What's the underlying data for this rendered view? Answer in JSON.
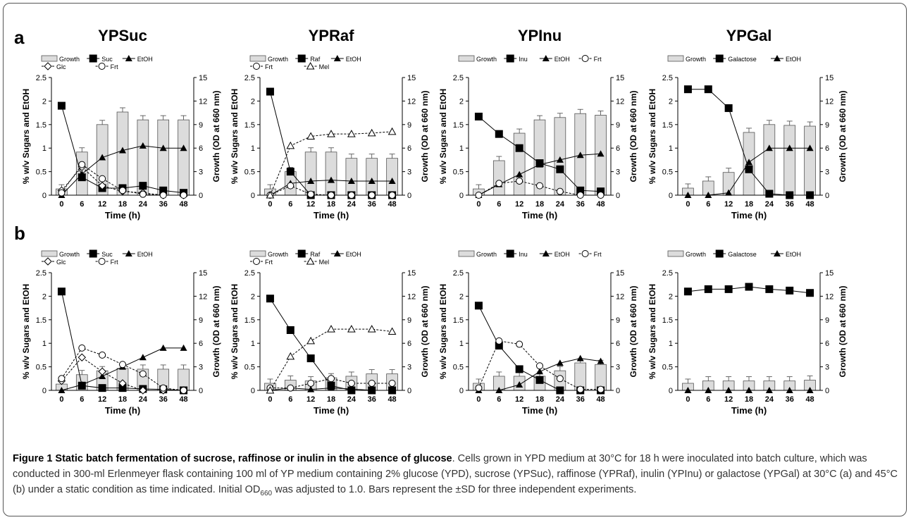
{
  "panels": [
    {
      "letter": "a"
    },
    {
      "letter": "b"
    }
  ],
  "columns": [
    "YPSuc",
    "YPRaf",
    "YPInu",
    "YPGal"
  ],
  "axis": {
    "xlabel": "Time (h)",
    "ylabel_left": "% w/v Sugars and EtOH",
    "ylabel_right": "Growth (OD at 660 nm)",
    "categories": [
      "0",
      "6",
      "12",
      "18",
      "24",
      "36",
      "48"
    ],
    "left_ticks": [
      "0",
      "0.5",
      "1",
      "1.5",
      "2",
      "2.5"
    ],
    "right_ticks": [
      "0",
      "3",
      "6",
      "9",
      "12",
      "15"
    ],
    "ylim_left": [
      0,
      2.5
    ],
    "ylim_right": [
      0,
      15
    ]
  },
  "legends": [
    {
      "row1": [
        "Growth",
        "Suc",
        "EtOH"
      ],
      "row2": [
        "Glc",
        "Frt"
      ]
    },
    {
      "row1": [
        "Growth",
        "Raf",
        "EtOH"
      ],
      "row2": [
        "Frt",
        "Mel"
      ]
    },
    {
      "row1": [
        "Growth",
        "Inu",
        "EtOH",
        "Frt"
      ],
      "row2": []
    },
    {
      "row1": [
        "Growth",
        "Galactose",
        "EtOH"
      ],
      "row2": []
    }
  ],
  "chart_data": [
    {
      "type": "bar+line",
      "panel": "a",
      "title": "YPSuc",
      "growth": [
        0.8,
        5.5,
        9.0,
        10.6,
        9.6,
        9.6,
        9.6
      ],
      "series": [
        {
          "name": "Suc",
          "marker": "filled-square",
          "dash": false,
          "values": [
            1.9,
            0.38,
            0.15,
            0.15,
            0.2,
            0.1,
            0.05
          ]
        },
        {
          "name": "EtOH",
          "marker": "filled-triangle",
          "dash": false,
          "values": [
            0.0,
            0.45,
            0.8,
            0.95,
            1.05,
            1.0,
            1.0
          ]
        },
        {
          "name": "Glc",
          "marker": "open-diamond",
          "dash": true,
          "values": [
            0.1,
            0.6,
            0.2,
            0.08,
            0.05,
            0.0,
            0.0
          ]
        },
        {
          "name": "Frt",
          "marker": "open-circle",
          "dash": true,
          "values": [
            0.05,
            0.65,
            0.35,
            0.1,
            0.02,
            0.0,
            0.0
          ]
        }
      ]
    },
    {
      "type": "bar+line",
      "panel": "a",
      "title": "YPRaf",
      "growth": [
        0.8,
        3.0,
        5.5,
        5.5,
        4.7,
        4.7,
        4.7
      ],
      "series": [
        {
          "name": "Raf",
          "marker": "filled-square",
          "dash": false,
          "values": [
            2.2,
            0.5,
            0.0,
            0.0,
            0.0,
            0.0,
            0.0
          ]
        },
        {
          "name": "EtOH",
          "marker": "filled-triangle",
          "dash": false,
          "values": [
            0.0,
            0.25,
            0.3,
            0.32,
            0.3,
            0.3,
            0.3
          ]
        },
        {
          "name": "Frt",
          "marker": "open-circle",
          "dash": true,
          "values": [
            0.0,
            0.2,
            0.02,
            0.0,
            0.0,
            0.0,
            0.0
          ]
        },
        {
          "name": "Mel",
          "marker": "open-triangle",
          "dash": true,
          "values": [
            0.0,
            1.05,
            1.25,
            1.3,
            1.3,
            1.32,
            1.35
          ]
        }
      ]
    },
    {
      "type": "bar+line",
      "panel": "a",
      "title": "YPInu",
      "growth": [
        0.8,
        4.4,
        7.9,
        9.6,
        9.9,
        10.4,
        10.2
      ],
      "series": [
        {
          "name": "Inu",
          "marker": "filled-square",
          "dash": false,
          "values": [
            1.67,
            1.3,
            1.0,
            0.68,
            0.55,
            0.1,
            0.08
          ]
        },
        {
          "name": "EtOH",
          "marker": "filled-triangle",
          "dash": false,
          "values": [
            0.0,
            0.23,
            0.44,
            0.65,
            0.75,
            0.85,
            0.88
          ]
        },
        {
          "name": "Frt",
          "marker": "open-circle",
          "dash": true,
          "values": [
            0.0,
            0.25,
            0.3,
            0.2,
            0.08,
            0.0,
            0.0
          ]
        }
      ]
    },
    {
      "type": "bar+line",
      "panel": "a",
      "title": "YPGal",
      "growth": [
        0.9,
        1.8,
        2.9,
        8.0,
        9.0,
        8.9,
        8.8
      ],
      "series": [
        {
          "name": "Galactose",
          "marker": "filled-square",
          "dash": false,
          "values": [
            2.25,
            2.25,
            1.85,
            0.55,
            0.03,
            0.0,
            0.0
          ]
        },
        {
          "name": "EtOH",
          "marker": "filled-triangle",
          "dash": false,
          "values": [
            0.0,
            0.0,
            0.05,
            0.7,
            1.0,
            1.0,
            1.0
          ]
        }
      ]
    },
    {
      "type": "bar+line",
      "panel": "b",
      "title": "YPSuc",
      "growth": [
        0.8,
        2.0,
        2.5,
        2.8,
        2.7,
        2.7,
        2.7
      ],
      "series": [
        {
          "name": "Suc",
          "marker": "filled-square",
          "dash": false,
          "values": [
            2.1,
            0.1,
            0.05,
            0.05,
            0.03,
            0.02,
            0.0
          ]
        },
        {
          "name": "EtOH",
          "marker": "filled-triangle",
          "dash": false,
          "values": [
            0.0,
            0.12,
            0.3,
            0.5,
            0.7,
            0.9,
            0.9
          ]
        },
        {
          "name": "Glc",
          "marker": "open-diamond",
          "dash": true,
          "values": [
            0.2,
            0.7,
            0.4,
            0.15,
            0.0,
            0.0,
            0.0
          ]
        },
        {
          "name": "Frt",
          "marker": "open-circle",
          "dash": true,
          "values": [
            0.25,
            0.9,
            0.75,
            0.55,
            0.35,
            0.05,
            0.0
          ]
        }
      ]
    },
    {
      "type": "bar+line",
      "panel": "b",
      "title": "YPRaf",
      "growth": [
        0.9,
        1.3,
        1.2,
        1.6,
        1.8,
        2.1,
        2.1
      ],
      "series": [
        {
          "name": "Raf",
          "marker": "filled-square",
          "dash": false,
          "values": [
            1.95,
            1.28,
            0.68,
            0.1,
            0.0,
            0.0,
            0.0
          ]
        },
        {
          "name": "EtOH",
          "marker": "filled-triangle",
          "dash": false,
          "values": [
            0.0,
            0.05,
            0.02,
            0.05,
            0.03,
            0.0,
            0.0
          ]
        },
        {
          "name": "Frt",
          "marker": "open-circle",
          "dash": true,
          "values": [
            0.05,
            0.05,
            0.15,
            0.25,
            0.15,
            0.15,
            0.15
          ]
        },
        {
          "name": "Mel",
          "marker": "open-triangle",
          "dash": true,
          "values": [
            0.0,
            0.72,
            1.05,
            1.3,
            1.3,
            1.3,
            1.25
          ]
        }
      ]
    },
    {
      "type": "bar+line",
      "panel": "b",
      "title": "YPInu",
      "growth": [
        0.9,
        1.8,
        1.8,
        1.8,
        2.5,
        3.5,
        3.3
      ],
      "series": [
        {
          "name": "Inu",
          "marker": "filled-square",
          "dash": false,
          "values": [
            1.8,
            0.95,
            0.45,
            0.22,
            0.0,
            0.0,
            0.0
          ]
        },
        {
          "name": "EtOH",
          "marker": "filled-triangle",
          "dash": false,
          "values": [
            0.0,
            0.0,
            0.12,
            0.4,
            0.58,
            0.68,
            0.62
          ]
        },
        {
          "name": "Frt",
          "marker": "open-circle",
          "dash": true,
          "values": [
            0.05,
            1.05,
            0.98,
            0.52,
            0.25,
            0.02,
            0.02
          ]
        }
      ]
    },
    {
      "type": "bar+line",
      "panel": "b",
      "title": "YPGal",
      "growth": [
        0.9,
        1.2,
        1.2,
        1.2,
        1.2,
        1.2,
        1.3
      ],
      "series": [
        {
          "name": "Galactose",
          "marker": "filled-square",
          "dash": false,
          "values": [
            2.1,
            2.15,
            2.15,
            2.2,
            2.15,
            2.12,
            2.07
          ]
        },
        {
          "name": "EtOH",
          "marker": "filled-triangle",
          "dash": false,
          "values": [
            0.0,
            0.0,
            0.0,
            0.0,
            0.0,
            0.0,
            0.0
          ]
        }
      ]
    }
  ],
  "caption": {
    "title": "Figure 1 Static batch fermentation of sucrose, raffinose or inulin in the absence of glucose",
    "text1": ". Cells grown in YPD medium at 30°C for 18 h were inoculated into batch culture, which was conducted in 300-ml Erlenmeyer flask containing 100 ml of YP medium containing 2% glucose (YPD), sucrose (YPSuc), raffinose (YPRaf), inulin (YPInu) or galactose (YPGal) at 30°C (a) and 45°C (b) under a static condition as time indicated. Initial OD",
    "sub": "660",
    "text2": " was adjusted to 1.0. Bars represent the ±SD for three independent experiments."
  }
}
